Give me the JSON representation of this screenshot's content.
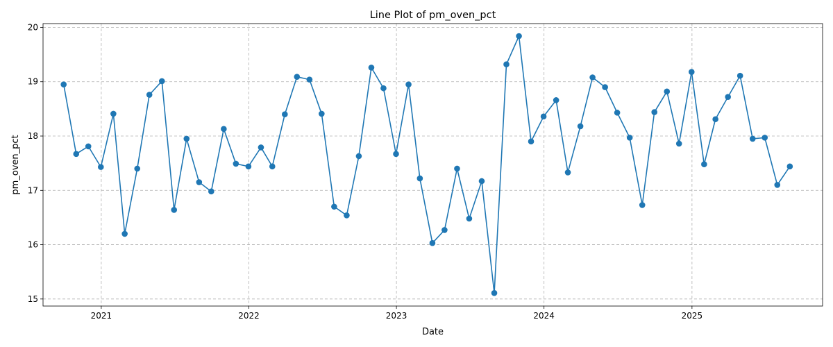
{
  "chart_data": {
    "type": "line",
    "title": "Line Plot of pm_oven_pct",
    "xlabel": "Date",
    "ylabel": "pm_oven_pct",
    "x_ticks": [
      "2021-01-01",
      "2022-01-01",
      "2023-01-01",
      "2024-01-01",
      "2025-01-01"
    ],
    "x_tick_labels": [
      "2021",
      "2022",
      "2023",
      "2024",
      "2025"
    ],
    "xlim": [
      "2020-08-10",
      "2025-11-20"
    ],
    "y_ticks": [
      15,
      16,
      17,
      18,
      19,
      20
    ],
    "ylim": [
      14.87,
      20.07
    ],
    "grid": true,
    "line_color": "#1f77b4",
    "marker": "circle",
    "series": [
      {
        "x": [
          "2020-09-30",
          "2020-10-31",
          "2020-11-30",
          "2020-12-31",
          "2021-01-31",
          "2021-02-28",
          "2021-03-31",
          "2021-04-30",
          "2021-05-31",
          "2021-06-30",
          "2021-07-31",
          "2021-08-31",
          "2021-09-30",
          "2021-10-31",
          "2021-11-30",
          "2021-12-31",
          "2022-01-31",
          "2022-02-28",
          "2022-03-31",
          "2022-04-30",
          "2022-05-31",
          "2022-06-30",
          "2022-07-31",
          "2022-08-31",
          "2022-09-30",
          "2022-10-31",
          "2022-11-30",
          "2022-12-31",
          "2023-01-31",
          "2023-02-28",
          "2023-03-31",
          "2023-04-30",
          "2023-05-31",
          "2023-06-30",
          "2023-07-31",
          "2023-08-31",
          "2023-09-30",
          "2023-10-31",
          "2023-11-30",
          "2023-12-31",
          "2024-01-31",
          "2024-02-29",
          "2024-03-31",
          "2024-04-30",
          "2024-05-31",
          "2024-06-30",
          "2024-07-31",
          "2024-08-31",
          "2024-09-30",
          "2024-10-31",
          "2024-11-30",
          "2024-12-31",
          "2025-01-31",
          "2025-02-28",
          "2025-03-31",
          "2025-04-30",
          "2025-05-31",
          "2025-06-30",
          "2025-07-31",
          "2025-08-31"
        ],
        "y": [
          18.95,
          17.67,
          17.81,
          17.43,
          18.41,
          16.2,
          17.4,
          18.76,
          19.01,
          16.64,
          17.95,
          17.15,
          16.98,
          18.13,
          17.49,
          17.44,
          17.79,
          17.44,
          18.4,
          19.09,
          19.04,
          18.41,
          16.7,
          16.54,
          17.63,
          19.26,
          18.88,
          17.67,
          18.95,
          17.22,
          16.03,
          16.27,
          17.4,
          16.48,
          17.17,
          15.11,
          19.32,
          19.84,
          17.9,
          18.36,
          18.66,
          17.33,
          18.18,
          19.08,
          18.9,
          18.43,
          17.97,
          16.73,
          18.44,
          18.82,
          17.86,
          19.18,
          17.48,
          18.31,
          18.72,
          19.11,
          17.95,
          17.97,
          17.1,
          17.44
        ]
      }
    ]
  }
}
